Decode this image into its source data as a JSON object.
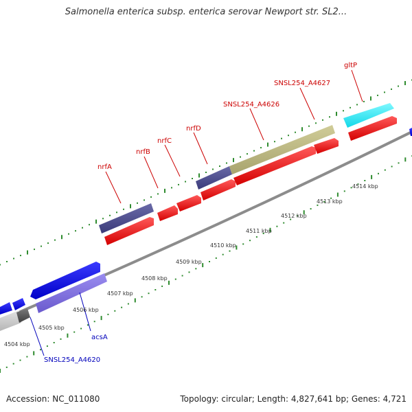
{
  "title": "Salmonella enterica subsp. enterica serovar Newport str. SL2...",
  "footer": {
    "accession": "Accession: NC_011080",
    "summary": "Topology: circular; Length: 4,827,641 bp; Genes: 4,721"
  },
  "colors": {
    "backbone": "#8c8c8c",
    "tick": "#2e8b2e",
    "forward_label": "#cc0000",
    "reverse_label": "#0000bb",
    "kbp_label": "#333333"
  },
  "kbp_ticks": [
    {
      "value": 4504,
      "label": "4504 kbp"
    },
    {
      "value": 4505,
      "label": "4505 kbp"
    },
    {
      "value": 4506,
      "label": "4506 kbp"
    },
    {
      "value": 4507,
      "label": "4507 kbp"
    },
    {
      "value": 4508,
      "label": "4508 kbp"
    },
    {
      "value": 4509,
      "label": "4509 kbp"
    },
    {
      "value": 4510,
      "label": "4510 kbp"
    },
    {
      "value": 4511,
      "label": "4511 kbp"
    },
    {
      "value": 4512,
      "label": "4512 kbp"
    },
    {
      "value": 4513,
      "label": "4513 kbp"
    },
    {
      "value": 4514,
      "label": "4514 kbp"
    }
  ],
  "gene_labels": [
    {
      "name": "nrfA",
      "strand": "forward"
    },
    {
      "name": "nrfB",
      "strand": "forward"
    },
    {
      "name": "nrfC",
      "strand": "forward"
    },
    {
      "name": "nrfD",
      "strand": "forward"
    },
    {
      "name": "SNSL254_A4626",
      "strand": "forward"
    },
    {
      "name": "SNSL254_A4627",
      "strand": "forward"
    },
    {
      "name": "gltP",
      "strand": "forward"
    },
    {
      "name": "acsA",
      "strand": "reverse"
    },
    {
      "name": "SNSL254_A4620",
      "strand": "reverse"
    }
  ]
}
